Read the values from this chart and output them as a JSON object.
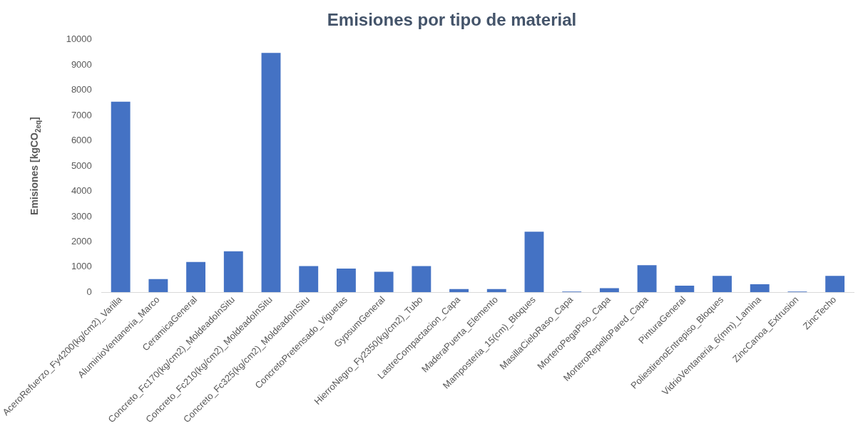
{
  "chart_data": {
    "type": "bar",
    "title": "Emisiones por tipo de material",
    "ylabel": "Emisiones [kgCO$_{2eq}$]",
    "categories": [
      "AceroRefuerzo_Fy4200(kg/cm2)_Varilla",
      "AluminioVentaneria_Marco",
      "CeramicaGeneral",
      "Concreto_Fc170(kg/cm2)_MoldeadoInSitu",
      "Concreto_Fc210(kg/cm2)_MoldeadoInSitu",
      "Concreto_Fc325(kg/cm2)_MoldeadoInSitu",
      "ConcretoPretensado_Viguetas",
      "GypsumGeneral",
      "HierroNegro_Fy2350(kg/cm2)_Tubo",
      "LastreCompactacion_Capa",
      "MaderaPuerta_Elemento",
      "Mamposteria_15(cm)_Bloques",
      "MasillaCieloRaso_Capa",
      "MorteroPegaPiso_Capa",
      "MorteroRepelloPared_Capa",
      "PinturaGeneral",
      "PoliestirenoEntrepiso_Bloques",
      "VidrioVentaneria_6(mm)_Lamina",
      "ZincCanoa_Extrusion",
      "ZincTecho"
    ],
    "values": [
      7550,
      520,
      1200,
      1620,
      9480,
      1040,
      940,
      810,
      1040,
      130,
      130,
      2400,
      30,
      160,
      1070,
      260,
      650,
      320,
      30,
      650
    ],
    "color": "#4472c4",
    "ylim": [
      0,
      10000
    ],
    "yticks": [
      0,
      1000,
      2000,
      3000,
      4000,
      5000,
      6000,
      7000,
      8000,
      9000,
      10000
    ],
    "grid": false,
    "legend": false
  }
}
